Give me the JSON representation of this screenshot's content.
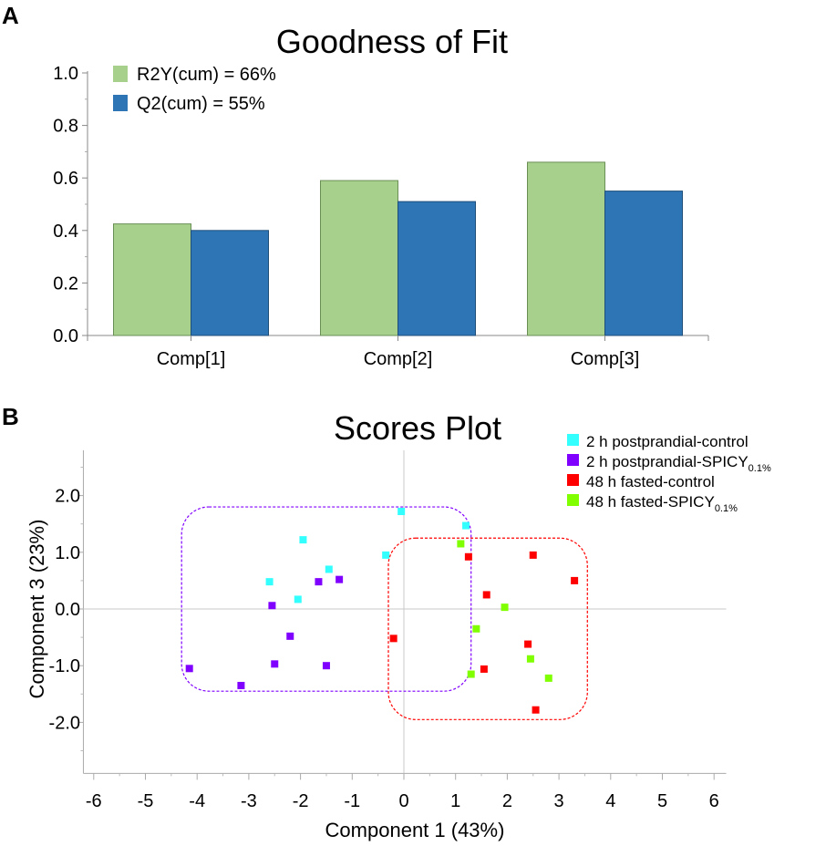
{
  "panels": {
    "a_label": "A",
    "b_label": "B"
  },
  "chart_data": [
    {
      "type": "bar",
      "title": "Goodness of Fit",
      "categories": [
        "Comp[1]",
        "Comp[2]",
        "Comp[3]"
      ],
      "series": [
        {
          "name": "R2Y(cum) = 66%",
          "color": "#a8d08d",
          "stroke": "#6a8f55",
          "values": [
            0.425,
            0.59,
            0.66
          ]
        },
        {
          "name": "Q2(cum) = 55%",
          "color": "#2e75b6",
          "stroke": "#1f4e79",
          "values": [
            0.4,
            0.51,
            0.55
          ]
        }
      ],
      "ylim": [
        0,
        1.0
      ],
      "yticks": [
        0.0,
        0.2,
        0.4,
        0.6,
        0.8,
        1.0
      ],
      "ytick_labels": [
        "0.0",
        "0.2",
        "0.4",
        "0.6",
        "0.8",
        "1.0"
      ],
      "xlabel": "",
      "ylabel": "",
      "legend": "top-left"
    },
    {
      "type": "scatter",
      "title": "Scores Plot",
      "xlabel": "Component 1 (43%)",
      "ylabel": "Component 3 (23%)",
      "xlim": [
        -6.2,
        6.2
      ],
      "ylim": [
        -2.9,
        2.8
      ],
      "xticks": [
        -6,
        -5,
        -4,
        -3,
        -2,
        -1,
        0,
        1,
        2,
        3,
        4,
        5,
        6
      ],
      "xtick_labels": [
        "-6",
        "-5",
        "-4",
        "-3",
        "-2",
        "-1",
        "0",
        "1",
        "2",
        "3",
        "4",
        "5",
        "6"
      ],
      "yticks": [
        2.0,
        1.0,
        0.0,
        -1.0,
        -2.0
      ],
      "ytick_labels": [
        "2.0",
        "1.0",
        "0.0",
        "-1.0",
        "-2.0"
      ],
      "legend": "top-right",
      "series": [
        {
          "name": "2 h postprandial-control",
          "label_main": "2 h postprandial-control",
          "label_sub": "",
          "color": "#33ffff",
          "points": [
            [
              -2.6,
              0.48
            ],
            [
              -1.95,
              1.22
            ],
            [
              -1.45,
              0.7
            ],
            [
              -2.05,
              0.17
            ],
            [
              -0.35,
              0.95
            ],
            [
              -0.05,
              1.72
            ],
            [
              1.2,
              1.47
            ]
          ]
        },
        {
          "name": "2 h postprandial-SPICY0.1%",
          "label_main": "2 h postprandial-SPICY",
          "label_sub": "0.1%",
          "color": "#8000ff",
          "points": [
            [
              -2.55,
              0.06
            ],
            [
              -1.65,
              0.48
            ],
            [
              -1.25,
              0.52
            ],
            [
              -2.2,
              -0.48
            ],
            [
              -2.5,
              -0.97
            ],
            [
              -1.5,
              -1.0
            ],
            [
              -4.15,
              -1.05
            ],
            [
              -3.15,
              -1.35
            ]
          ]
        },
        {
          "name": "48 h fasted-control",
          "label_main": "48 h fasted-control",
          "label_sub": "",
          "color": "#ff0000",
          "points": [
            [
              1.25,
              0.92
            ],
            [
              2.5,
              0.95
            ],
            [
              3.3,
              0.5
            ],
            [
              1.6,
              0.25
            ],
            [
              -0.2,
              -0.52
            ],
            [
              2.4,
              -0.62
            ],
            [
              1.55,
              -1.06
            ],
            [
              2.55,
              -1.78
            ]
          ]
        },
        {
          "name": "48 h fasted-SPICY0.1%",
          "label_main": "48 h fasted-SPICY",
          "label_sub": "0.1%",
          "color": "#80ff00",
          "points": [
            [
              1.1,
              1.15
            ],
            [
              1.95,
              0.03
            ],
            [
              1.4,
              -0.35
            ],
            [
              2.45,
              -0.88
            ],
            [
              2.8,
              -1.22
            ],
            [
              1.3,
              -1.15
            ]
          ]
        }
      ],
      "regions": [
        {
          "name": "purple-group-outline",
          "color": "#8000ff",
          "x": [
            -4.3,
            1.3
          ],
          "y": [
            -1.45,
            1.8
          ]
        },
        {
          "name": "red-group-outline",
          "color": "#ff0000",
          "x": [
            -0.3,
            3.55
          ],
          "y": [
            -1.95,
            1.25
          ]
        }
      ]
    }
  ]
}
